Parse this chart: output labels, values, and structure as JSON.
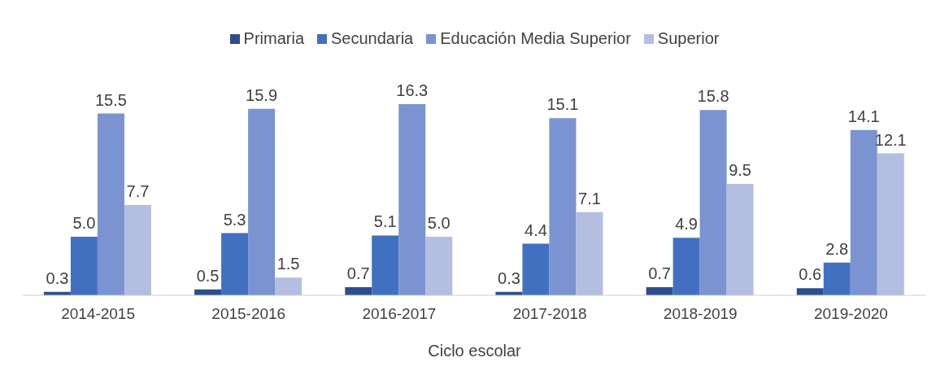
{
  "chart_data": {
    "type": "bar",
    "xlabel": "Ciclo escolar",
    "categories": [
      "2014-2015",
      "2015-2016",
      "2016-2017",
      "2017-2018",
      "2018-2019",
      "2019-2020"
    ],
    "series": [
      {
        "name": "Primaria",
        "color": "#2e4d8e",
        "values": [
          0.3,
          0.5,
          0.7,
          0.3,
          0.7,
          0.6
        ],
        "value_labels": [
          "0.3",
          "0.5",
          "0.7",
          "0.3",
          "0.7",
          "0.6"
        ]
      },
      {
        "name": "Secundaria",
        "color": "#4270c0",
        "values": [
          5.0,
          5.3,
          5.1,
          4.4,
          4.9,
          2.8
        ],
        "value_labels": [
          "5.0",
          "5.3",
          "5.1",
          "4.4",
          "4.9",
          "2.8"
        ]
      },
      {
        "name": "Educación Media Superior",
        "color": "#7a93d1",
        "values": [
          15.5,
          15.9,
          16.3,
          15.1,
          15.8,
          14.1
        ],
        "value_labels": [
          "15.5",
          "15.9",
          "16.3",
          "15.1",
          "15.8",
          "14.1"
        ]
      },
      {
        "name": "Superior",
        "color": "#b3bee0",
        "values": [
          7.7,
          1.5,
          5.0,
          7.1,
          9.5,
          12.1
        ],
        "value_labels": [
          "7.7",
          "1.5",
          "5.0",
          "7.1",
          "9.5",
          "12.1"
        ]
      }
    ],
    "grid": false,
    "legend": "top"
  }
}
